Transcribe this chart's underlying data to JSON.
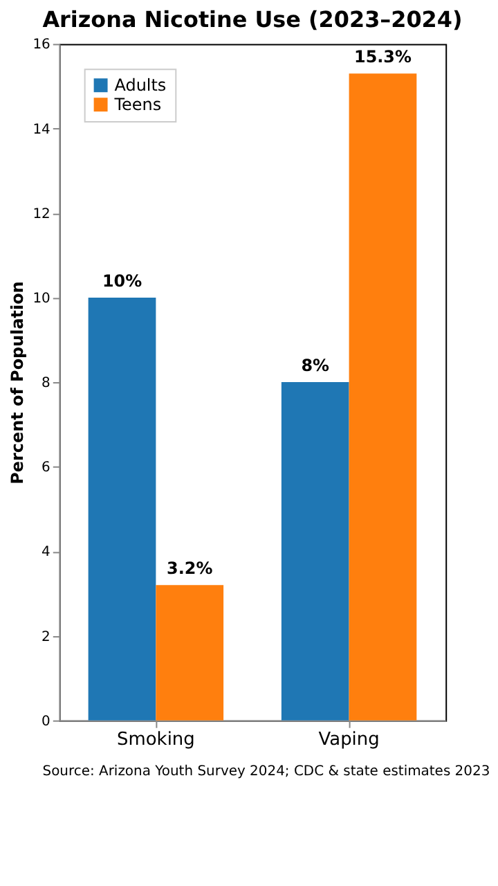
{
  "chart_data": {
    "type": "bar",
    "title": "Arizona Nicotine Use (2023–2024)",
    "ylabel": "Percent of Population",
    "categories": [
      "Smoking",
      "Vaping"
    ],
    "series": [
      {
        "name": "Adults",
        "color": "#1f77b4",
        "values": [
          10,
          8
        ],
        "value_labels": [
          "10%",
          "8%"
        ]
      },
      {
        "name": "Teens",
        "color": "#ff7f0e",
        "values": [
          3.2,
          15.3
        ],
        "value_labels": [
          "3.2%",
          "15.3%"
        ]
      }
    ],
    "ylim": [
      0,
      16
    ],
    "yticks": [
      0,
      2,
      4,
      6,
      8,
      10,
      12,
      14,
      16
    ],
    "grid": false,
    "legend": "top left",
    "annotations": [
      "Source: Arizona Youth Survey 2024; CDC & state estimates 2023"
    ]
  }
}
